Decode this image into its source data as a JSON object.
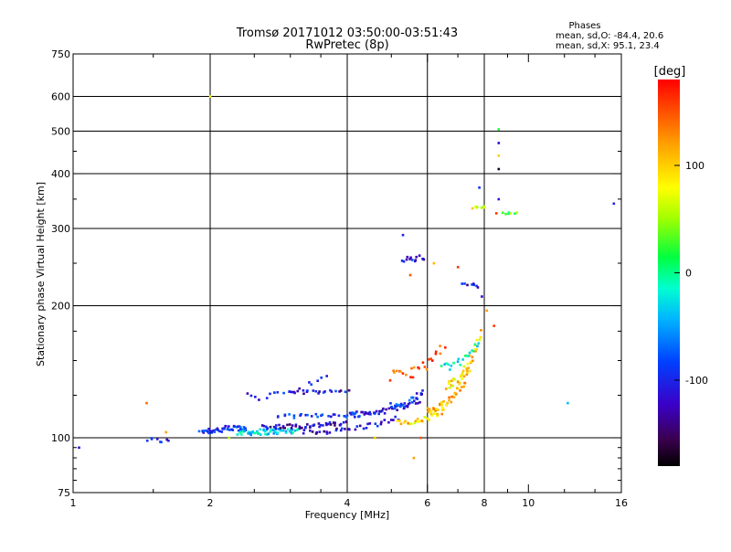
{
  "chart_data": {
    "type": "scatter",
    "title": "Tromsø 20171012 03:50:00-03:51:43",
    "subtitle": "RwPretec (8p)",
    "stats_header": "Phases",
    "stats_o": "mean, sd,O: -84.4, 20.6",
    "stats_x": "mean, sd,X:  95.1, 23.4",
    "xlabel": "Frequency [MHz]",
    "ylabel": "Stationary phase Virtual Height [km]",
    "x_scale": "log",
    "y_scale": "log",
    "xlim": [
      1,
      16
    ],
    "ylim": [
      75,
      750
    ],
    "x_ticks": [
      1,
      2,
      4,
      6,
      8,
      10,
      16
    ],
    "x_gridlines": [
      2,
      4,
      6,
      8
    ],
    "y_ticks": [
      75,
      100,
      200,
      300,
      400,
      500,
      600,
      750
    ],
    "y_gridlines": [
      100,
      200,
      300,
      400,
      500,
      600
    ],
    "grid": true,
    "colorbar": {
      "label": "[deg]",
      "range": [
        -180,
        180
      ],
      "ticks": [
        -100,
        0,
        100
      ]
    },
    "traces": [
      {
        "from": [
          1.45,
          99
        ],
        "to": [
          1.62,
          98
        ],
        "n": 8,
        "spread": 0.012,
        "phase": -100
      },
      {
        "from": [
          1.9,
          104
        ],
        "to": [
          2.4,
          106
        ],
        "n": 45,
        "spread": 0.018,
        "phase": -95
      },
      {
        "from": [
          2.3,
          103
        ],
        "to": [
          3.1,
          104
        ],
        "n": 55,
        "spread": 0.015,
        "phase": -35
      },
      {
        "from": [
          2.6,
          106
        ],
        "to": [
          4.0,
          108
        ],
        "n": 50,
        "spread": 0.012,
        "phase": -120
      },
      {
        "from": [
          3.2,
          103
        ],
        "to": [
          5.2,
          111
        ],
        "n": 35,
        "spread": 0.012,
        "phase": -110
      },
      {
        "from": [
          2.8,
          112
        ],
        "to": [
          4.8,
          115
        ],
        "n": 35,
        "spread": 0.01,
        "phase": -100
      },
      {
        "from": [
          4.0,
          113
        ],
        "to": [
          5.8,
          122
        ],
        "n": 40,
        "spread": 0.014,
        "phase": -100
      },
      {
        "from": [
          5.0,
          118
        ],
        "to": [
          5.9,
          128
        ],
        "n": 25,
        "spread": 0.02,
        "phase": -90
      },
      {
        "from": [
          3.0,
          127
        ],
        "to": [
          4.0,
          128
        ],
        "n": 20,
        "spread": 0.008,
        "phase": -110
      },
      {
        "from": [
          2.4,
          124
        ],
        "to": [
          3.6,
          138
        ],
        "n": 18,
        "spread": 0.02,
        "phase": -105
      },
      {
        "from": [
          5.2,
          108
        ],
        "to": [
          6.5,
          115
        ],
        "n": 30,
        "spread": 0.015,
        "phase": 100
      },
      {
        "from": [
          6.0,
          115
        ],
        "to": [
          7.4,
          142
        ],
        "n": 45,
        "spread": 0.02,
        "phase": 110
      },
      {
        "from": [
          6.6,
          132
        ],
        "to": [
          7.9,
          175
        ],
        "n": 40,
        "spread": 0.022,
        "phase": 95
      },
      {
        "from": [
          5.0,
          138
        ],
        "to": [
          6.5,
          160
        ],
        "n": 25,
        "spread": 0.03,
        "phase": 150
      },
      {
        "from": [
          6.5,
          145
        ],
        "to": [
          7.8,
          165
        ],
        "n": 20,
        "spread": 0.02,
        "phase": -20
      },
      {
        "from": [
          5.3,
          255
        ],
        "to": [
          5.9,
          258
        ],
        "n": 14,
        "spread": 0.015,
        "phase": -110
      },
      {
        "from": [
          7.2,
          225
        ],
        "to": [
          7.8,
          222
        ],
        "n": 8,
        "spread": 0.01,
        "phase": -110
      },
      {
        "from": [
          7.6,
          335
        ],
        "to": [
          8.0,
          336
        ],
        "n": 8,
        "spread": 0.006,
        "phase": 80
      },
      {
        "from": [
          8.8,
          325
        ],
        "to": [
          9.4,
          326
        ],
        "n": 7,
        "spread": 0.004,
        "phase": 30
      }
    ],
    "scatter_points": [
      [
        1.03,
        95,
        -120
      ],
      [
        1.45,
        120,
        140
      ],
      [
        1.6,
        103,
        120
      ],
      [
        2.0,
        600,
        80
      ],
      [
        2.2,
        100,
        60
      ],
      [
        5.6,
        90,
        120
      ],
      [
        5.3,
        290,
        -100
      ],
      [
        5.5,
        235,
        150
      ],
      [
        6.2,
        250,
        110
      ],
      [
        7.0,
        245,
        160
      ],
      [
        7.8,
        372,
        -90
      ],
      [
        7.9,
        210,
        -120
      ],
      [
        8.1,
        195,
        120
      ],
      [
        8.4,
        180,
        160
      ],
      [
        8.6,
        505,
        20
      ],
      [
        8.6,
        470,
        -120
      ],
      [
        8.6,
        440,
        100
      ],
      [
        8.6,
        410,
        -170
      ],
      [
        8.6,
        350,
        -110
      ],
      [
        8.5,
        325,
        160
      ],
      [
        12.2,
        120,
        -40
      ],
      [
        15.4,
        342,
        -100
      ],
      [
        5.8,
        100,
        150
      ],
      [
        4.6,
        100,
        100
      ]
    ]
  }
}
